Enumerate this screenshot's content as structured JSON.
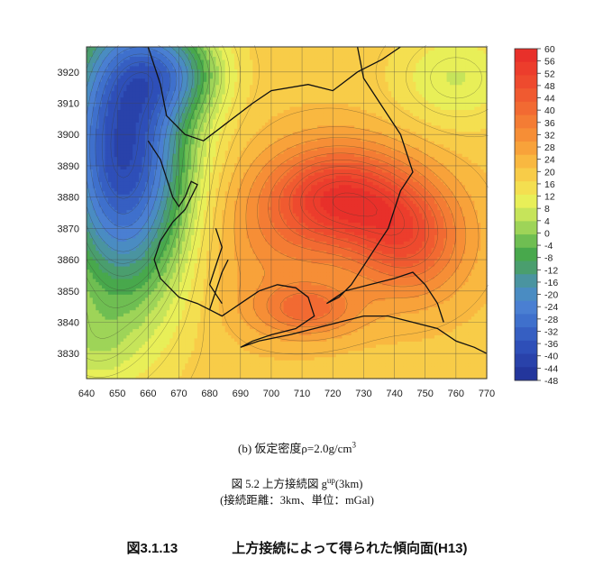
{
  "chart_data": {
    "type": "heatmap",
    "subtype": "filled contour map",
    "title": "",
    "xlabel": "",
    "ylabel": "",
    "x_ticks": [
      640,
      650,
      660,
      670,
      680,
      690,
      700,
      710,
      720,
      730,
      740,
      750,
      760,
      770
    ],
    "y_ticks": [
      3830,
      3840,
      3850,
      3860,
      3870,
      3880,
      3890,
      3900,
      3910,
      3920
    ],
    "xlim": [
      640,
      770
    ],
    "ylim": [
      3822,
      3928
    ],
    "grid": true,
    "units": "mGal",
    "colorbar": {
      "placement": "right",
      "ticks": [
        60,
        56,
        52,
        48,
        44,
        40,
        36,
        32,
        28,
        24,
        20,
        16,
        12,
        8,
        4,
        0,
        -4,
        -8,
        -12,
        -16,
        -20,
        -24,
        -28,
        -32,
        -36,
        -40,
        -44,
        -48
      ],
      "colors": [
        "#e8302a",
        "#ec3d2c",
        "#ee4a2e",
        "#f05a30",
        "#f26a32",
        "#f47c34",
        "#f68e36",
        "#f8a23a",
        "#f9b840",
        "#f8cc48",
        "#f4df50",
        "#e8ef58",
        "#c6e45a",
        "#9ed458",
        "#6fbe52",
        "#48a84c",
        "#4a9e6e",
        "#4a94a0",
        "#4a8cc2",
        "#4a7fd2",
        "#3f70cc",
        "#365fc2",
        "#2e4fb8",
        "#2942aa",
        "#23369c"
      ]
    },
    "sources": [
      {
        "x": 722,
        "y": 3880,
        "amp": 34,
        "sx": 17,
        "sy": 12
      },
      {
        "x": 745,
        "y": 3866,
        "amp": 24,
        "sx": 13,
        "sy": 13
      },
      {
        "x": 712,
        "y": 3844,
        "amp": 18,
        "sx": 12,
        "sy": 6
      },
      {
        "x": 700,
        "y": 3862,
        "amp": 8,
        "sx": 16,
        "sy": 16
      },
      {
        "x": 652,
        "y": 3895,
        "amp": -60,
        "sx": 15,
        "sy": 34
      },
      {
        "x": 668,
        "y": 3920,
        "amp": -22,
        "sx": 12,
        "sy": 10
      },
      {
        "x": 760,
        "y": 3918,
        "amp": -12,
        "sx": 14,
        "sy": 11
      },
      {
        "x": 640,
        "y": 3832,
        "amp": -8,
        "sx": 10,
        "sy": 10
      }
    ],
    "base_value": 22
  },
  "captions": {
    "sub_b": "(b) 仮定密度ρ=2.0g/cm",
    "sub_b_sup": "3",
    "fig_label": "図 5.2   上方接続図   g",
    "fig_sup": "up",
    "fig_tail": "(3km)",
    "unit_note": "(接続距離：3km、単位：mGal)",
    "main_number": "図3.1.13",
    "main_title": "上方接続によって得られた傾向面(H13)"
  }
}
